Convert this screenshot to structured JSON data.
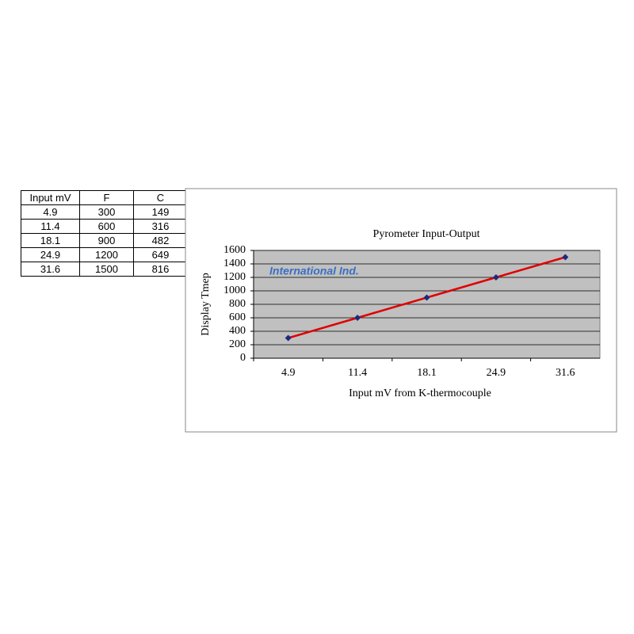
{
  "table": {
    "header": [
      "Input mV",
      "F",
      "C"
    ],
    "rows": [
      [
        "4.9",
        "300",
        "149"
      ],
      [
        "11.4",
        "600",
        "316"
      ],
      [
        "18.1",
        "900",
        "482"
      ],
      [
        "24.9",
        "1200",
        "649"
      ],
      [
        "31.6",
        "1500",
        "816"
      ]
    ]
  },
  "chart_data": {
    "type": "line",
    "title": "Pyrometer Input-Output",
    "x_label": "Input mV from K-thermocouple",
    "y_label": "Display Tmep",
    "annotation": "International Ind.",
    "categories": [
      "4.9",
      "11.4",
      "18.1",
      "24.9",
      "31.6"
    ],
    "values": [
      300,
      600,
      900,
      1200,
      1500
    ],
    "color": "#e00000",
    "marker_color": "#1a2a80",
    "background": "#c0c0c0",
    "ylim": [
      0,
      1600
    ],
    "yticks": [
      0,
      200,
      400,
      600,
      800,
      1000,
      1200,
      1400,
      1600
    ],
    "grid": true
  }
}
